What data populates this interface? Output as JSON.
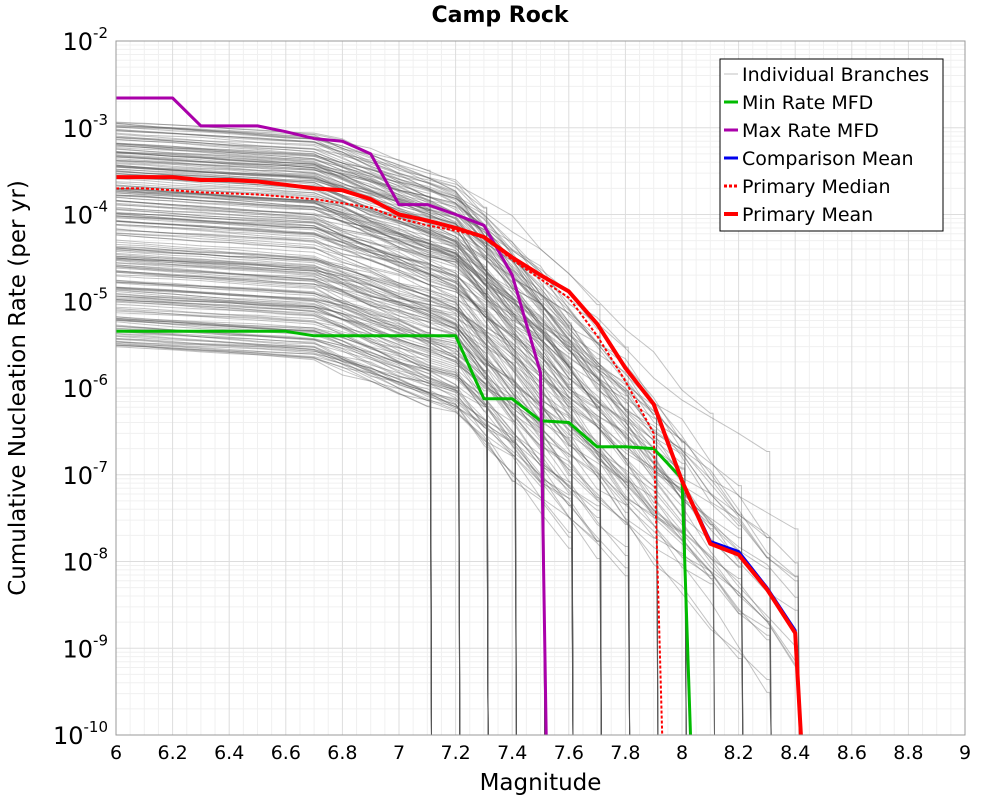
{
  "chart_data": {
    "type": "line",
    "title": "Camp Rock",
    "xlabel": "Magnitude",
    "ylabel": "Cumulative Nucleation Rate (per yr)",
    "xlim": [
      6,
      9
    ],
    "ylim": [
      1e-10,
      0.01
    ],
    "yscale": "log",
    "grid": true,
    "legend_position": "top-right",
    "x_ticks": [
      "6",
      "6.2",
      "6.4",
      "6.6",
      "6.8",
      "7",
      "7.2",
      "7.4",
      "7.6",
      "7.8",
      "8",
      "8.2",
      "8.4",
      "8.6",
      "8.8",
      "9"
    ],
    "y_ticks": [
      {
        "base": "10",
        "exp": "-2"
      },
      {
        "base": "10",
        "exp": "-3"
      },
      {
        "base": "10",
        "exp": "-4"
      },
      {
        "base": "10",
        "exp": "-5"
      },
      {
        "base": "10",
        "exp": "-6"
      },
      {
        "base": "10",
        "exp": "-7"
      },
      {
        "base": "10",
        "exp": "-8"
      },
      {
        "base": "10",
        "exp": "-9"
      },
      {
        "base": "10",
        "exp": "-10"
      }
    ],
    "legend": [
      {
        "name": "Individual Branches",
        "color": "#c0c0c0",
        "style": "solid"
      },
      {
        "name": "Min Rate MFD",
        "color": "#00bb00",
        "style": "solid"
      },
      {
        "name": "Max Rate MFD",
        "color": "#aa00aa",
        "style": "solid"
      },
      {
        "name": "Comparison Mean",
        "color": "#0000ee",
        "style": "solid"
      },
      {
        "name": "Primary Median",
        "color": "#ff0000",
        "style": "dotted"
      },
      {
        "name": "Primary Mean",
        "color": "#ff0000",
        "style": "solid"
      }
    ],
    "series": [
      {
        "name": "Min Rate MFD",
        "color": "#00bb00",
        "x": [
          6.0,
          6.1,
          6.2,
          6.3,
          6.4,
          6.5,
          6.6,
          6.7,
          6.8,
          6.9,
          7.0,
          7.1,
          7.2,
          7.3,
          7.4,
          7.5,
          7.6,
          7.7,
          7.8,
          7.9,
          8.0,
          8.03
        ],
        "y": [
          4.5e-06,
          4.5e-06,
          4.5e-06,
          4.5e-06,
          4.5e-06,
          4.5e-06,
          4.5e-06,
          4e-06,
          4e-06,
          4e-06,
          4e-06,
          4e-06,
          4e-06,
          7.5e-07,
          7.5e-07,
          4.2e-07,
          4e-07,
          2.1e-07,
          2.1e-07,
          2e-07,
          9e-08,
          1e-10
        ]
      },
      {
        "name": "Max Rate MFD",
        "color": "#aa00aa",
        "x": [
          6.0,
          6.1,
          6.2,
          6.3,
          6.4,
          6.5,
          6.6,
          6.7,
          6.8,
          6.9,
          7.0,
          7.1,
          7.2,
          7.3,
          7.4,
          7.5,
          7.52
        ],
        "y": [
          0.0022,
          0.0022,
          0.0022,
          0.00105,
          0.00105,
          0.00105,
          0.0009,
          0.00075,
          0.0007,
          0.0005,
          0.00013,
          0.00013,
          0.0001,
          7.5e-05,
          2e-05,
          1.5e-06,
          1e-10
        ]
      },
      {
        "name": "Comparison Mean",
        "color": "#0000ee",
        "x": [
          6.0,
          6.1,
          6.2,
          6.3,
          6.4,
          6.5,
          6.6,
          6.7,
          6.8,
          6.9,
          7.0,
          7.1,
          7.2,
          7.3,
          7.4,
          7.5,
          7.6,
          7.7,
          7.8,
          7.9,
          8.0,
          8.1,
          8.2,
          8.3,
          8.4,
          8.42
        ],
        "y": [
          0.00027,
          0.00027,
          0.00027,
          0.00025,
          0.00025,
          0.00024,
          0.00022,
          0.0002,
          0.00019,
          0.00015,
          0.0001,
          8.5e-05,
          7e-05,
          5.5e-05,
          3.2e-05,
          2e-05,
          1.3e-05,
          5.5e-06,
          1.7e-06,
          6.5e-07,
          8.5e-08,
          1.7e-08,
          1.3e-08,
          5e-09,
          1.6e-09,
          1e-10
        ]
      },
      {
        "name": "Primary Median",
        "color": "#ff0000",
        "x": [
          6.0,
          6.1,
          6.2,
          6.3,
          6.4,
          6.5,
          6.6,
          6.7,
          6.8,
          6.9,
          7.0,
          7.1,
          7.2,
          7.3,
          7.4,
          7.5,
          7.6,
          7.7,
          7.8,
          7.9,
          7.93
        ],
        "y": [
          0.0002,
          0.0002,
          0.00019,
          0.00018,
          0.000175,
          0.00017,
          0.00016,
          0.00015,
          0.000135,
          0.00012,
          9e-05,
          7.5e-05,
          6.5e-05,
          5.5e-05,
          3e-05,
          1.8e-05,
          1.1e-05,
          4e-06,
          1.2e-06,
          3e-07,
          1e-10
        ]
      },
      {
        "name": "Primary Mean",
        "color": "#ff0000",
        "x": [
          6.0,
          6.1,
          6.2,
          6.3,
          6.4,
          6.5,
          6.6,
          6.7,
          6.8,
          6.9,
          7.0,
          7.1,
          7.2,
          7.3,
          7.4,
          7.5,
          7.6,
          7.7,
          7.8,
          7.9,
          8.0,
          8.1,
          8.2,
          8.3,
          8.4,
          8.42
        ],
        "y": [
          0.00027,
          0.00027,
          0.00027,
          0.00025,
          0.00025,
          0.00024,
          0.00022,
          0.0002,
          0.00019,
          0.00015,
          0.0001,
          8.5e-05,
          7e-05,
          5.5e-05,
          3.2e-05,
          2e-05,
          1.3e-05,
          5.5e-06,
          1.7e-06,
          6.5e-07,
          8.5e-08,
          1.6e-08,
          1.2e-08,
          4.8e-09,
          1.5e-09,
          1e-10
        ]
      }
    ]
  }
}
